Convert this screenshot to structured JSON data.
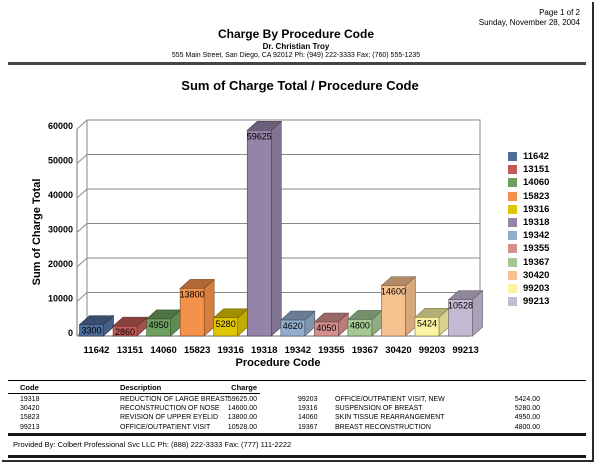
{
  "page": {
    "page_info": "Page 1 of 2",
    "date": "Sunday, November 28, 2004",
    "title": "Charge By Procedure Code",
    "doctor": "Dr. Christian Troy",
    "address": "555 Main Street, San Diego, CA 92012 Ph: (949) 222-3333 Fax: (760) 555-1235",
    "footer": "Provided By: Colbert Professional Svc LLC Ph: (888) 222-3333 Fax: (777) 111-2222"
  },
  "chart_data": {
    "type": "bar",
    "title": "Sum of Charge Total / Procedure Code",
    "xlabel": "Procedure Code",
    "ylabel": "Sum of Charge Total",
    "ylim": [
      0,
      60000
    ],
    "ytick_step": 10000,
    "grid": true,
    "legend_position": "right",
    "style": "3d-column",
    "categories": [
      "11642",
      "13151",
      "14060",
      "15823",
      "19316",
      "19318",
      "19342",
      "19355",
      "19367",
      "30420",
      "99203",
      "99213"
    ],
    "values": [
      3300,
      2860,
      4950,
      13800,
      5280,
      59625,
      4620,
      4050,
      4800,
      14600,
      5424,
      10528
    ],
    "colors": [
      "#4F6D99",
      "#C05B58",
      "#6EA05F",
      "#F4914A",
      "#DFC602",
      "#9484A8",
      "#92ACCC",
      "#D58F8C",
      "#A4C794",
      "#F6C18F",
      "#FAF3A2",
      "#C5BAD4"
    ]
  },
  "table": {
    "headers": [
      "Code",
      "Description",
      "Charge"
    ],
    "left_rows": [
      [
        "19318",
        "REDUCTION OF LARGE BREAST",
        "59625.00"
      ],
      [
        "30420",
        "RECONSTRUCTION OF NOSE",
        "14600.00"
      ],
      [
        "15823",
        "REVISION OF UPPER EYELID",
        "13800.00"
      ],
      [
        "99213",
        "OFFICE/OUTPATIENT VISIT",
        "10528.00"
      ]
    ],
    "right_rows": [
      [
        "99203",
        "OFFICE/OUTPATIENT VISIT, NEW",
        "5424.00"
      ],
      [
        "19316",
        "SUSPENSION OF BREAST",
        "5280.00"
      ],
      [
        "14060",
        "SKIN TISSUE REARRANGEMENT",
        "4950.00"
      ],
      [
        "19367",
        "BREAST RECONSTRUCTION",
        "4800.00"
      ]
    ]
  }
}
